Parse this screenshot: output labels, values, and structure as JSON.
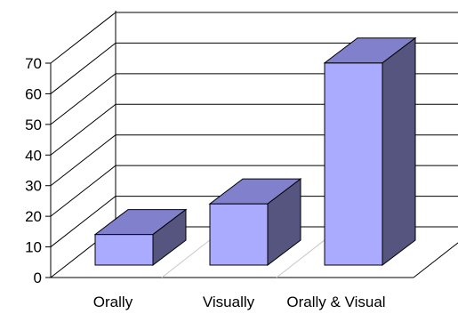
{
  "chart_data": {
    "type": "bar",
    "title": "",
    "xlabel": "",
    "ylabel": "",
    "categories": [
      "Orally",
      "Visually",
      "Orally & Visual"
    ],
    "values": [
      10,
      20,
      66
    ],
    "ylim": [
      0,
      70
    ],
    "yticks": [
      "0",
      "10",
      "20",
      "30",
      "40",
      "50",
      "60",
      "70"
    ],
    "grid": true,
    "legend": "none",
    "style": "3d",
    "colors": {
      "bar_front": "#aaaaff",
      "bar_top": "#8080cc",
      "bar_side": "#555580",
      "outline": "#000000",
      "grid": "#000000",
      "floor_lines": "#c8c8c8"
    }
  }
}
